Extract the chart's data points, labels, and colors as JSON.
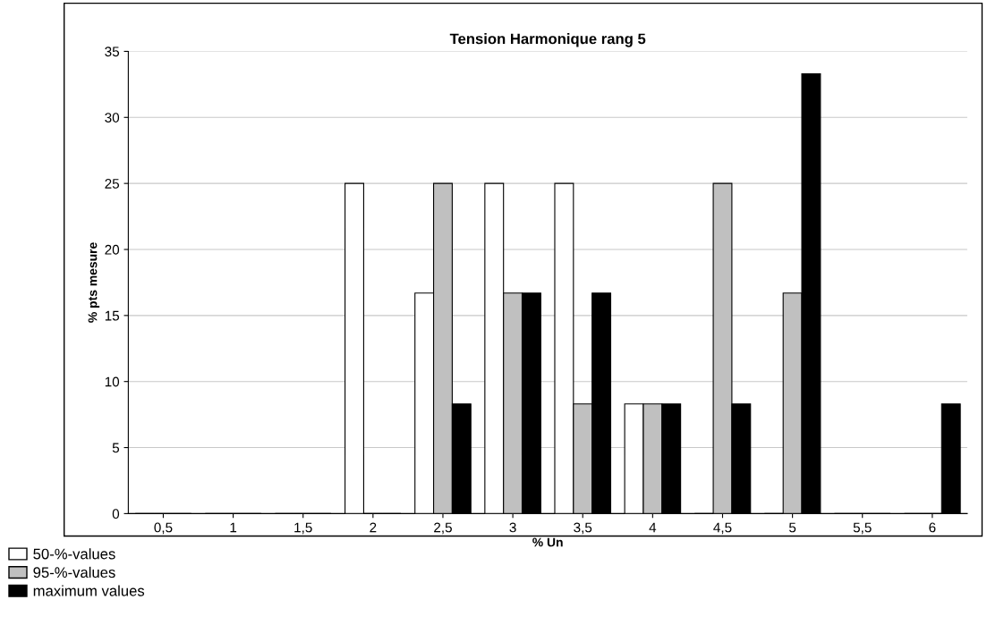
{
  "chart_data": {
    "type": "bar",
    "title": "Tension Harmonique rang 5",
    "xlabel": "% Un",
    "ylabel": "% pts mesure",
    "categories": [
      "0,5",
      "1",
      "1,5",
      "2",
      "2,5",
      "3",
      "3,5",
      "4",
      "4,5",
      "5",
      "5,5",
      "6"
    ],
    "series": [
      {
        "name": "50-%-values",
        "color": "#ffffff",
        "values": [
          0,
          0,
          0,
          25,
          16.7,
          25,
          25,
          8.3,
          0,
          0,
          0,
          0
        ]
      },
      {
        "name": "95-%-values",
        "color": "#c0c0c0",
        "values": [
          0,
          0,
          0,
          0,
          25,
          16.7,
          8.3,
          8.3,
          25,
          16.7,
          0,
          0
        ]
      },
      {
        "name": "maximum values",
        "color": "#000000",
        "values": [
          0,
          0,
          0,
          0,
          8.3,
          16.7,
          16.7,
          8.3,
          8.3,
          33.3,
          0,
          8.3
        ]
      }
    ],
    "ylim": [
      0,
      35
    ],
    "yticks": [
      0,
      5,
      10,
      15,
      20,
      25,
      30,
      35
    ],
    "grid": "y",
    "legend": "bottom left"
  }
}
